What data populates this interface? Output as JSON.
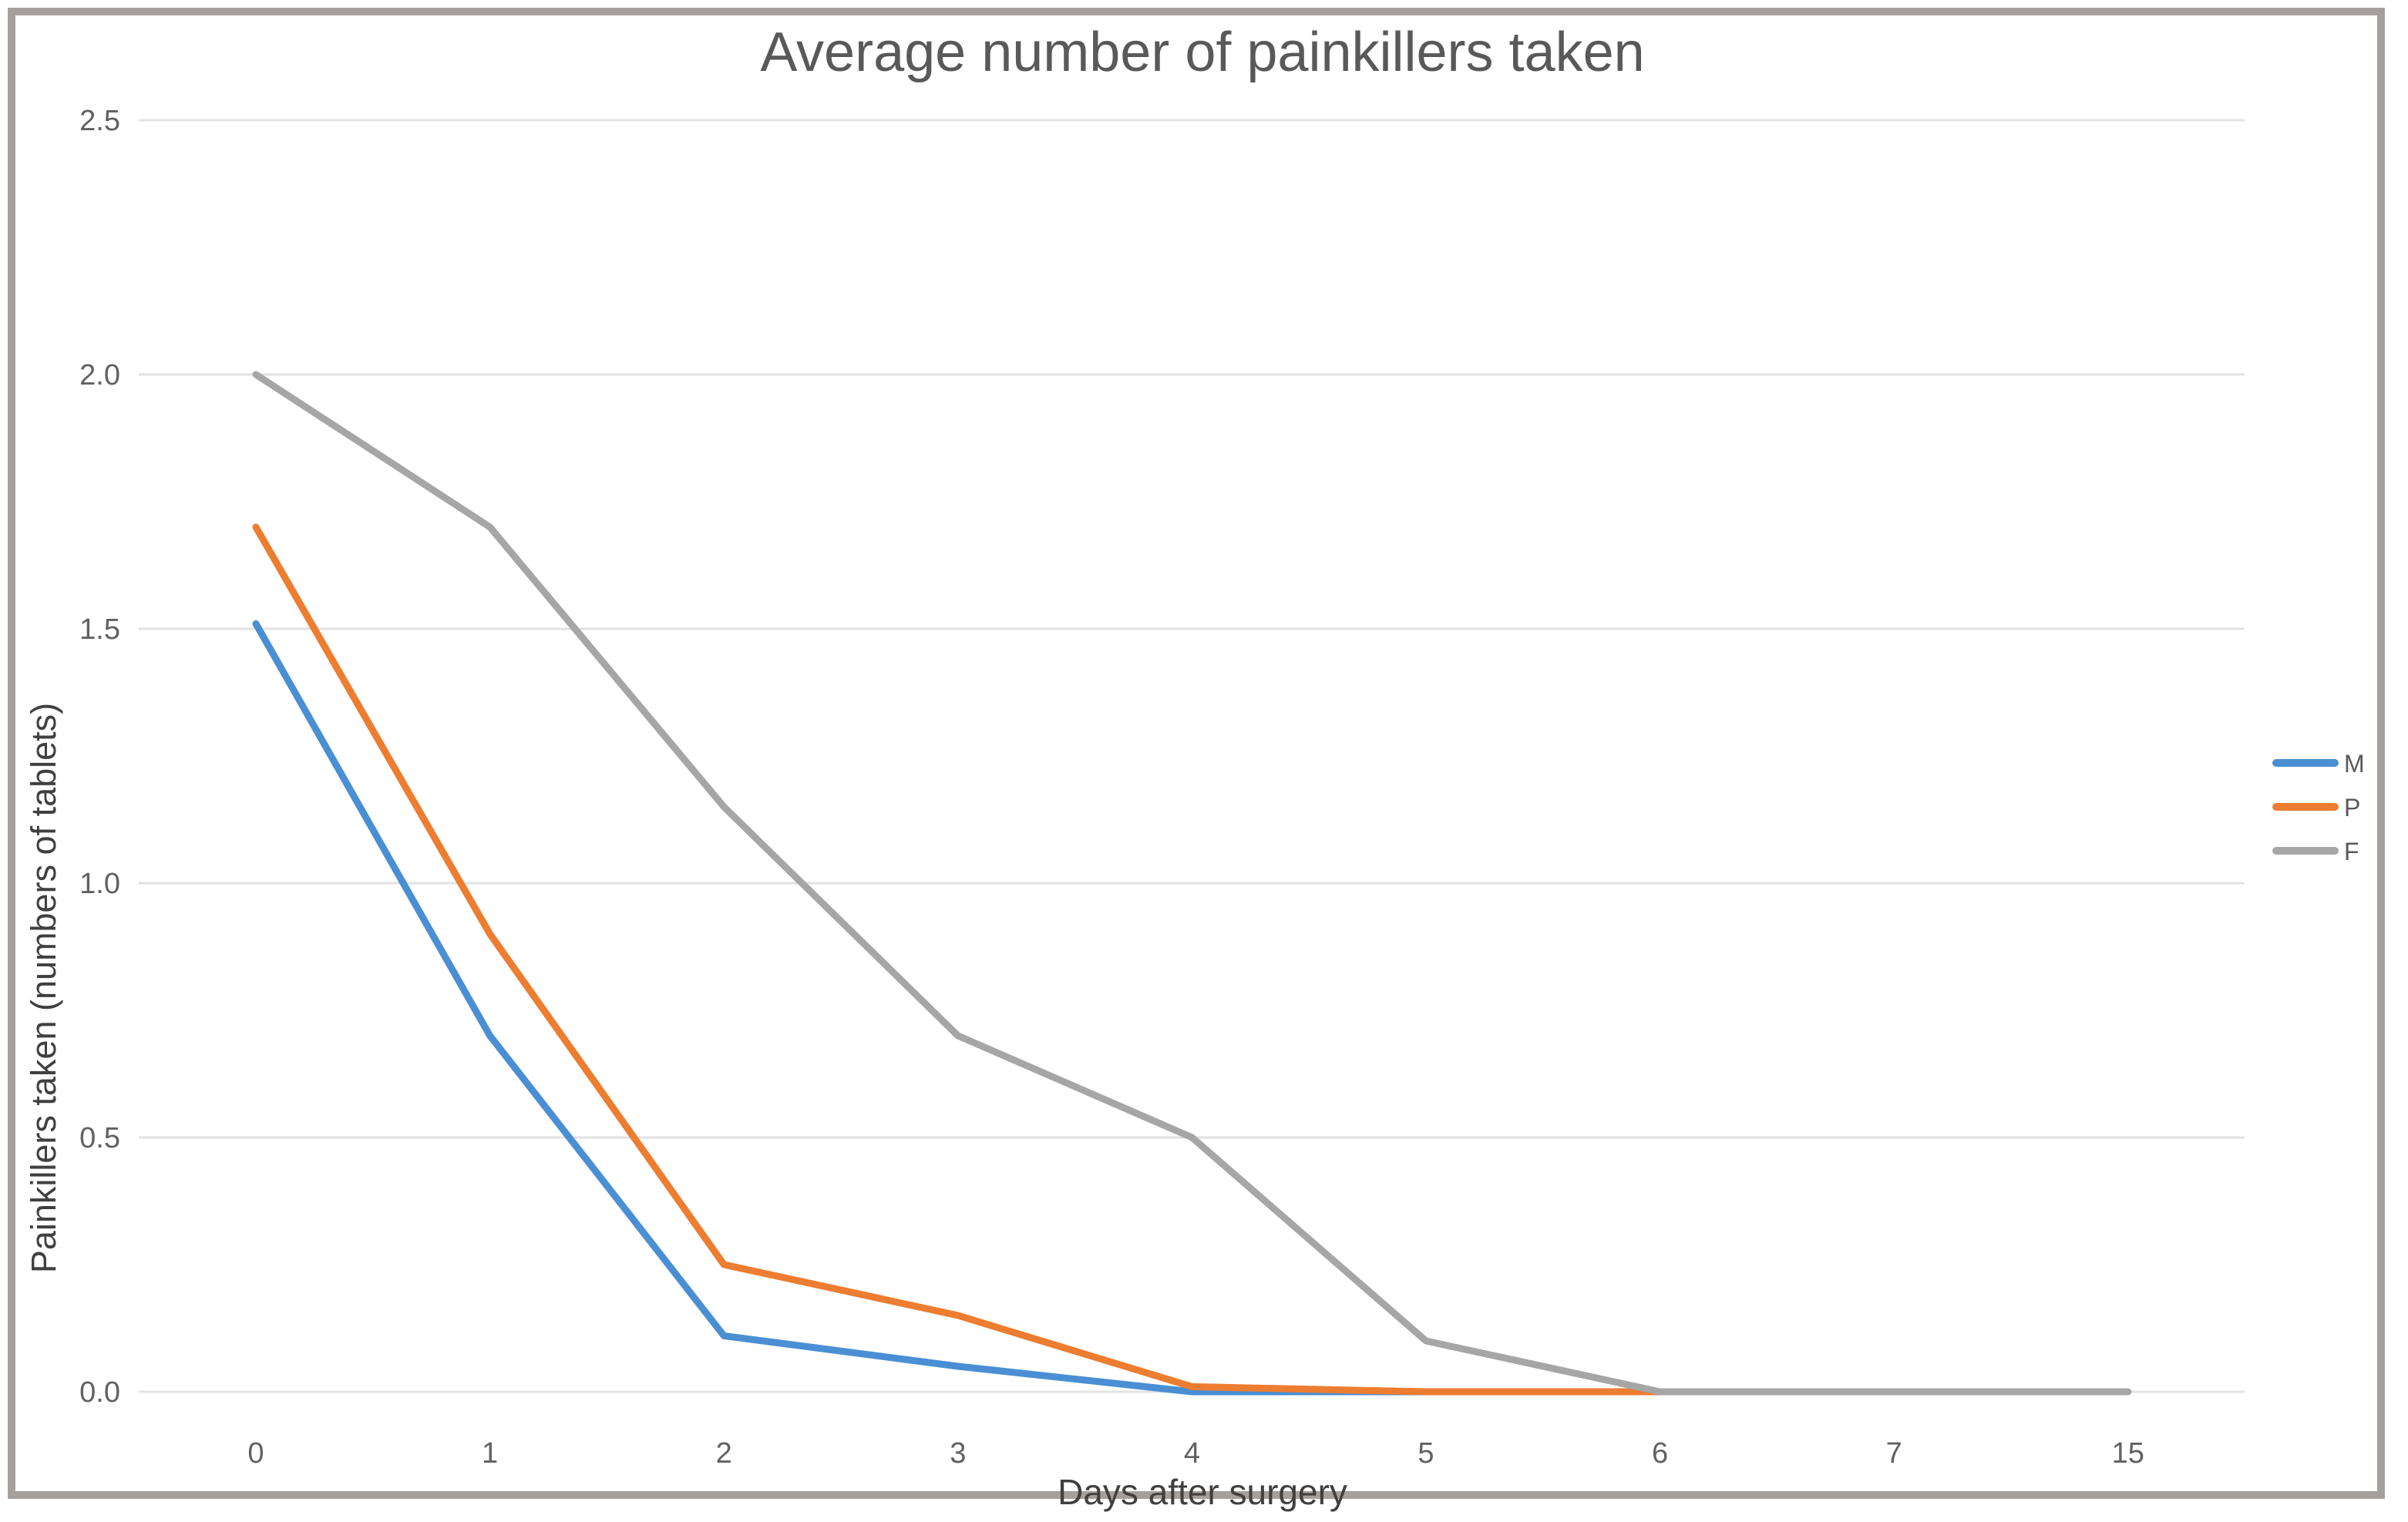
{
  "chart_data": {
    "type": "line",
    "title": "Average number of painkillers taken",
    "xlabel": "Days after surgery",
    "ylabel": "Painkillers taken (numbers of tablets)",
    "categories": [
      "0",
      "1",
      "2",
      "3",
      "4",
      "5",
      "6",
      "7",
      "15"
    ],
    "y_ticks": [
      "0.0",
      "0.5",
      "1.0",
      "1.5",
      "2.0",
      "2.5"
    ],
    "ylim": [
      0,
      2.5
    ],
    "grid": "horizontal-only",
    "legend_position": "right",
    "series": [
      {
        "name": "M",
        "color": "#4A8FD3",
        "values": [
          1.51,
          0.7,
          0.11,
          0.05,
          0,
          0,
          null,
          null,
          null
        ]
      },
      {
        "name": "P",
        "color": "#ED7D31",
        "values": [
          1.7,
          0.9,
          0.25,
          0.15,
          0.01,
          0,
          0,
          null,
          null
        ]
      },
      {
        "name": "F",
        "color": "#A6A6A6",
        "values": [
          2.0,
          1.7,
          1.15,
          0.7,
          0.5,
          0.1,
          0,
          0,
          0
        ]
      }
    ]
  },
  "colors": {
    "gridline": "#E2E2E2",
    "tick_text": "#616161",
    "title_text": "#595959",
    "axis_title_text": "#404040",
    "frame_border": "#A5A09D"
  }
}
